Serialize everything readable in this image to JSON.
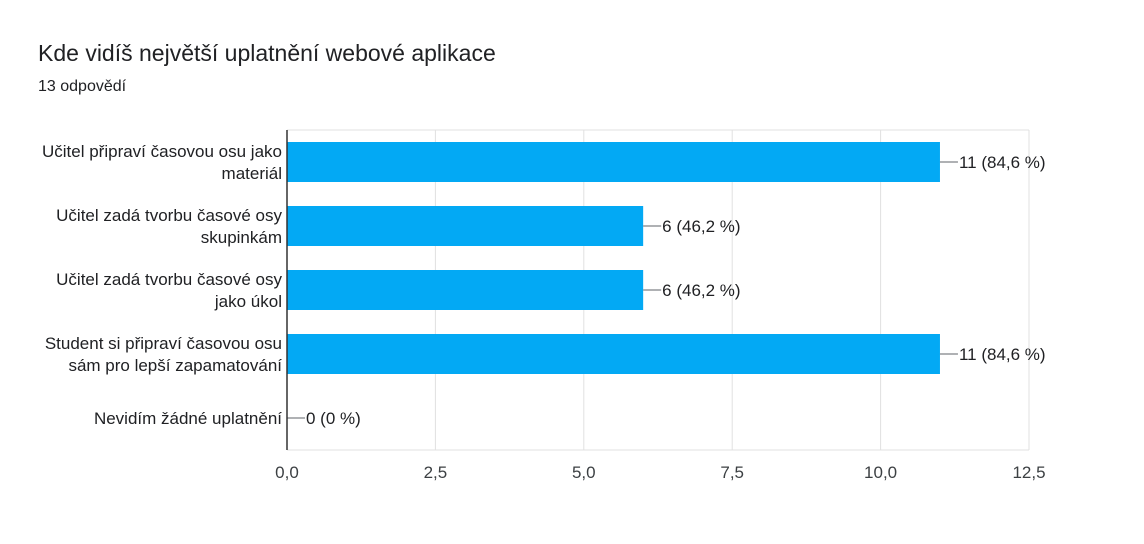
{
  "title": "Kde vidíš největší uplatnění webové aplikace",
  "subtitle": "13 odpovědí",
  "chart_data": {
    "type": "bar",
    "orientation": "horizontal",
    "categories": [
      [
        "Učitel připraví časovou osu jako",
        "materiál"
      ],
      [
        "Učitel zadá tvorbu časové osy",
        "skupinkám"
      ],
      [
        "Učitel zadá tvorbu časové osy",
        "jako úkol"
      ],
      [
        "Student si připraví časovou osu",
        "sám pro lepší zapamatování"
      ],
      [
        "Nevidím žádné uplatnění"
      ]
    ],
    "values": [
      11,
      6,
      6,
      11,
      0
    ],
    "data_labels": [
      "11 (84,6 %)",
      "6 (46,2 %)",
      "6 (46,2 %)",
      "11 (84,6 %)",
      "0 (0 %)"
    ],
    "xlim": [
      0,
      12.5
    ],
    "xticks": [
      0,
      2.5,
      5,
      7.5,
      10,
      12.5
    ],
    "xtick_labels": [
      "0,0",
      "2,5",
      "5,0",
      "7,5",
      "10,0",
      "12,5"
    ],
    "bar_color": "#03a9f4",
    "grid": true
  }
}
